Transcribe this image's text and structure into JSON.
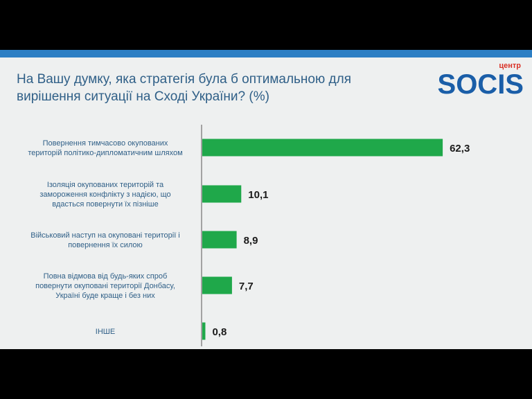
{
  "title_lines": [
    "На Вашу думку, яка стратегія була б оптимальною для",
    "вирішення ситуації на Сході України? (%)"
  ],
  "logo": {
    "small_text": "центр",
    "text": "SOCIS",
    "color": "#1a5ea8",
    "accent": "#d93025"
  },
  "colors": {
    "bar": "#1fa84a",
    "title": "#2f5f87",
    "top_band": "#2d7fc4",
    "background": "#eef0f0"
  },
  "chart_data": {
    "type": "bar",
    "orientation": "horizontal",
    "categories": [
      [
        "Повернення тимчасово окупованих",
        "територій політико-дипломатичним шляхом"
      ],
      [
        "Ізоляція окупованих територій та",
        "замороження конфлікту з надією, що",
        "вдасться повернути їх пізніше"
      ],
      [
        "Військовий наступ на окуповані території і",
        "повернення їх силою"
      ],
      [
        "Повна відмова від будь-яких спроб",
        "повернути окуповані території Донбасу,",
        "Україні буде краще і без них"
      ],
      [
        "ІНШЕ"
      ]
    ],
    "values": [
      62.3,
      10.1,
      8.9,
      7.7,
      0.8
    ],
    "value_labels": [
      "62,3",
      "10,1",
      "8,9",
      "7,7",
      "0,8"
    ],
    "xlim": [
      0,
      70
    ],
    "grid": false,
    "legend": "none"
  }
}
